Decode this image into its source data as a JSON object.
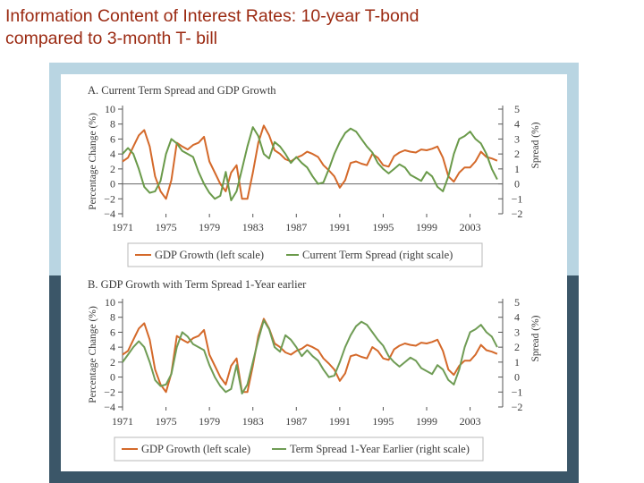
{
  "slide": {
    "title_line1": "Information Content of Interest Rates: 10-year T-bond",
    "title_line2": "compared to 3-month T- bill"
  },
  "colors": {
    "gdp": "#d4692a",
    "current_spread": "#6a9a4a",
    "lagged_spread": "#6f9c55",
    "title": "#9b2a12",
    "top_band": "#b9d5e2",
    "bottom_band": "#3b5668"
  },
  "chart_data": [
    {
      "type": "line",
      "title": "A. Current Term Spread and GDP Growth",
      "ylabel": "Percentage Change (%)",
      "ylabel_right": "Spread (%)",
      "ylim": [
        -4,
        10
      ],
      "ylim_right": [
        -2,
        5
      ],
      "yticks": [
        "10",
        "8",
        "6",
        "4",
        "2",
        "0",
        "−2",
        "−4"
      ],
      "yticks_right": [
        "5",
        "4",
        "3",
        "2",
        "1",
        "0",
        "−1",
        "−2"
      ],
      "xlim": [
        1971,
        2006
      ],
      "xticks": [
        "1971",
        "1975",
        "1979",
        "1983",
        "1987",
        "1991",
        "1995",
        "1999",
        "2003"
      ],
      "zero_line": true,
      "legend": [
        "GDP Growth (left scale)",
        "Current Term Spread (right scale)"
      ],
      "series": [
        {
          "name": "GDP Growth",
          "axis": "left",
          "x": [
            1971,
            1971.5,
            1972,
            1972.5,
            1973,
            1973.5,
            1974,
            1974.5,
            1975,
            1975.5,
            1976,
            1976.5,
            1977,
            1977.5,
            1978,
            1978.5,
            1979,
            1979.5,
            1980,
            1980.5,
            1981,
            1981.5,
            1982,
            1982.5,
            1983,
            1983.5,
            1984,
            1984.5,
            1985,
            1985.5,
            1986,
            1986.5,
            1987,
            1987.5,
            1988,
            1988.5,
            1989,
            1989.5,
            1990,
            1990.5,
            1991,
            1991.5,
            1992,
            1992.5,
            1993,
            1993.5,
            1994,
            1994.5,
            1995,
            1995.5,
            1996,
            1996.5,
            1997,
            1997.5,
            1998,
            1998.5,
            1999,
            1999.5,
            2000,
            2000.5,
            2001,
            2001.5,
            2002,
            2002.5,
            2003,
            2003.5,
            2004,
            2004.5,
            2005,
            2005.5
          ],
          "values": [
            3.0,
            3.5,
            5.0,
            6.5,
            7.2,
            5.0,
            1.0,
            -1.0,
            -2.0,
            0.5,
            5.5,
            5.0,
            4.6,
            5.2,
            5.5,
            6.3,
            3.0,
            1.5,
            0.0,
            -1.0,
            1.5,
            2.5,
            -2.0,
            -2.0,
            1.5,
            5.5,
            7.8,
            6.5,
            4.5,
            4.0,
            3.3,
            3.0,
            3.5,
            3.8,
            4.3,
            4.0,
            3.6,
            2.5,
            1.8,
            1.0,
            -0.5,
            0.5,
            2.8,
            3.0,
            2.7,
            2.5,
            4.0,
            3.5,
            2.5,
            2.3,
            3.7,
            4.2,
            4.5,
            4.3,
            4.2,
            4.6,
            4.5,
            4.7,
            5.0,
            3.5,
            1.0,
            0.3,
            1.5,
            2.2,
            2.2,
            3.0,
            4.3,
            3.6,
            3.4,
            3.1
          ]
        },
        {
          "name": "Current Term Spread",
          "axis": "right",
          "x": [
            1971,
            1971.5,
            1972,
            1972.5,
            1973,
            1973.5,
            1974,
            1974.5,
            1975,
            1975.5,
            1976,
            1976.5,
            1977,
            1977.5,
            1978,
            1978.5,
            1979,
            1979.5,
            1980,
            1980.5,
            1981,
            1981.5,
            1982,
            1982.5,
            1983,
            1983.5,
            1984,
            1984.5,
            1985,
            1985.5,
            1986,
            1986.5,
            1987,
            1987.5,
            1988,
            1988.5,
            1989,
            1989.5,
            1990,
            1990.5,
            1991,
            1991.5,
            1992,
            1992.5,
            1993,
            1993.5,
            1994,
            1994.5,
            1995,
            1995.5,
            1996,
            1996.5,
            1997,
            1997.5,
            1998,
            1998.5,
            1999,
            1999.5,
            2000,
            2000.5,
            2001,
            2001.5,
            2002,
            2002.5,
            2003,
            2003.5,
            2004,
            2004.5,
            2005,
            2005.5
          ],
          "values": [
            2.0,
            2.4,
            2.0,
            1.0,
            -0.2,
            -0.6,
            -0.5,
            0.2,
            2.0,
            3.0,
            2.7,
            2.2,
            2.0,
            1.8,
            0.8,
            0.0,
            -0.6,
            -1.0,
            -0.8,
            0.8,
            -1.1,
            -0.5,
            1.0,
            2.5,
            3.8,
            3.2,
            2.0,
            1.7,
            2.8,
            2.5,
            2.0,
            1.4,
            1.8,
            1.4,
            1.1,
            0.5,
            0.0,
            0.1,
            1.0,
            2.0,
            2.8,
            3.4,
            3.7,
            3.5,
            3.0,
            2.5,
            2.1,
            1.4,
            1.0,
            0.7,
            1.0,
            1.3,
            1.1,
            0.6,
            0.4,
            0.2,
            0.8,
            0.5,
            -0.2,
            -0.5,
            0.5,
            2.0,
            3.0,
            3.2,
            3.5,
            3.0,
            2.7,
            2.0,
            1.0,
            0.3
          ]
        }
      ]
    },
    {
      "type": "line",
      "title": "B. GDP Growth with Term Spread 1-Year earlier",
      "ylabel": "Percentage Change (%)",
      "ylabel_right": "Spread (%)",
      "ylim": [
        -4,
        10
      ],
      "ylim_right": [
        -2,
        5
      ],
      "yticks": [
        "10",
        "8",
        "6",
        "4",
        "2",
        "0",
        "−2",
        "−4"
      ],
      "yticks_right": [
        "5",
        "4",
        "3",
        "2",
        "1",
        "0",
        "−1",
        "−2"
      ],
      "xlim": [
        1971,
        2006
      ],
      "xticks": [
        "1971",
        "1975",
        "1979",
        "1983",
        "1987",
        "1991",
        "1995",
        "1999",
        "2003"
      ],
      "zero_line": false,
      "legend": [
        "GDP Growth (left scale)",
        "Term Spread 1-Year Earlier (right scale)"
      ],
      "series": [
        {
          "name": "GDP Growth",
          "axis": "left",
          "x": [
            1971,
            1971.5,
            1972,
            1972.5,
            1973,
            1973.5,
            1974,
            1974.5,
            1975,
            1975.5,
            1976,
            1976.5,
            1977,
            1977.5,
            1978,
            1978.5,
            1979,
            1979.5,
            1980,
            1980.5,
            1981,
            1981.5,
            1982,
            1982.5,
            1983,
            1983.5,
            1984,
            1984.5,
            1985,
            1985.5,
            1986,
            1986.5,
            1987,
            1987.5,
            1988,
            1988.5,
            1989,
            1989.5,
            1990,
            1990.5,
            1991,
            1991.5,
            1992,
            1992.5,
            1993,
            1993.5,
            1994,
            1994.5,
            1995,
            1995.5,
            1996,
            1996.5,
            1997,
            1997.5,
            1998,
            1998.5,
            1999,
            1999.5,
            2000,
            2000.5,
            2001,
            2001.5,
            2002,
            2002.5,
            2003,
            2003.5,
            2004,
            2004.5,
            2005,
            2005.5
          ],
          "values": [
            3.0,
            3.5,
            5.0,
            6.5,
            7.2,
            5.0,
            1.0,
            -1.0,
            -2.0,
            0.5,
            5.5,
            5.0,
            4.6,
            5.2,
            5.5,
            6.3,
            3.0,
            1.5,
            0.0,
            -1.0,
            1.5,
            2.5,
            -2.0,
            -2.0,
            1.5,
            5.5,
            7.8,
            6.5,
            4.5,
            4.0,
            3.3,
            3.0,
            3.5,
            3.8,
            4.3,
            4.0,
            3.6,
            2.5,
            1.8,
            1.0,
            -0.5,
            0.5,
            2.8,
            3.0,
            2.7,
            2.5,
            4.0,
            3.5,
            2.5,
            2.3,
            3.7,
            4.2,
            4.5,
            4.3,
            4.2,
            4.6,
            4.5,
            4.7,
            5.0,
            3.5,
            1.0,
            0.3,
            1.5,
            2.2,
            2.2,
            3.0,
            4.3,
            3.6,
            3.4,
            3.1
          ]
        },
        {
          "name": "Term Spread 1-Year Earlier",
          "axis": "right",
          "x": [
            1971,
            1971.5,
            1972,
            1972.5,
            1973,
            1973.5,
            1974,
            1974.5,
            1975,
            1975.5,
            1976,
            1976.5,
            1977,
            1977.5,
            1978,
            1978.5,
            1979,
            1979.5,
            1980,
            1980.5,
            1981,
            1981.5,
            1982,
            1982.5,
            1983,
            1983.5,
            1984,
            1984.5,
            1985,
            1985.5,
            1986,
            1986.5,
            1987,
            1987.5,
            1988,
            1988.5,
            1989,
            1989.5,
            1990,
            1990.5,
            1991,
            1991.5,
            1992,
            1992.5,
            1993,
            1993.5,
            1994,
            1994.5,
            1995,
            1995.5,
            1996,
            1996.5,
            1997,
            1997.5,
            1998,
            1998.5,
            1999,
            1999.5,
            2000,
            2000.5,
            2001,
            2001.5,
            2002,
            2002.5,
            2003,
            2003.5,
            2004,
            2004.5,
            2005,
            2005.5
          ],
          "values": [
            1.0,
            1.5,
            2.0,
            2.4,
            2.0,
            1.0,
            -0.2,
            -0.6,
            -0.5,
            0.2,
            2.0,
            3.0,
            2.7,
            2.2,
            2.0,
            1.8,
            0.8,
            0.0,
            -0.6,
            -1.0,
            -0.8,
            0.8,
            -1.1,
            -0.5,
            1.0,
            2.5,
            3.8,
            3.2,
            2.0,
            1.7,
            2.8,
            2.5,
            2.0,
            1.4,
            1.8,
            1.4,
            1.1,
            0.5,
            0.0,
            0.1,
            1.0,
            2.0,
            2.8,
            3.4,
            3.7,
            3.5,
            3.0,
            2.5,
            2.1,
            1.4,
            1.0,
            0.7,
            1.0,
            1.3,
            1.1,
            0.6,
            0.4,
            0.2,
            0.8,
            0.5,
            -0.2,
            -0.5,
            0.5,
            2.0,
            3.0,
            3.2,
            3.5,
            3.0,
            2.7,
            2.0
          ]
        }
      ]
    }
  ]
}
